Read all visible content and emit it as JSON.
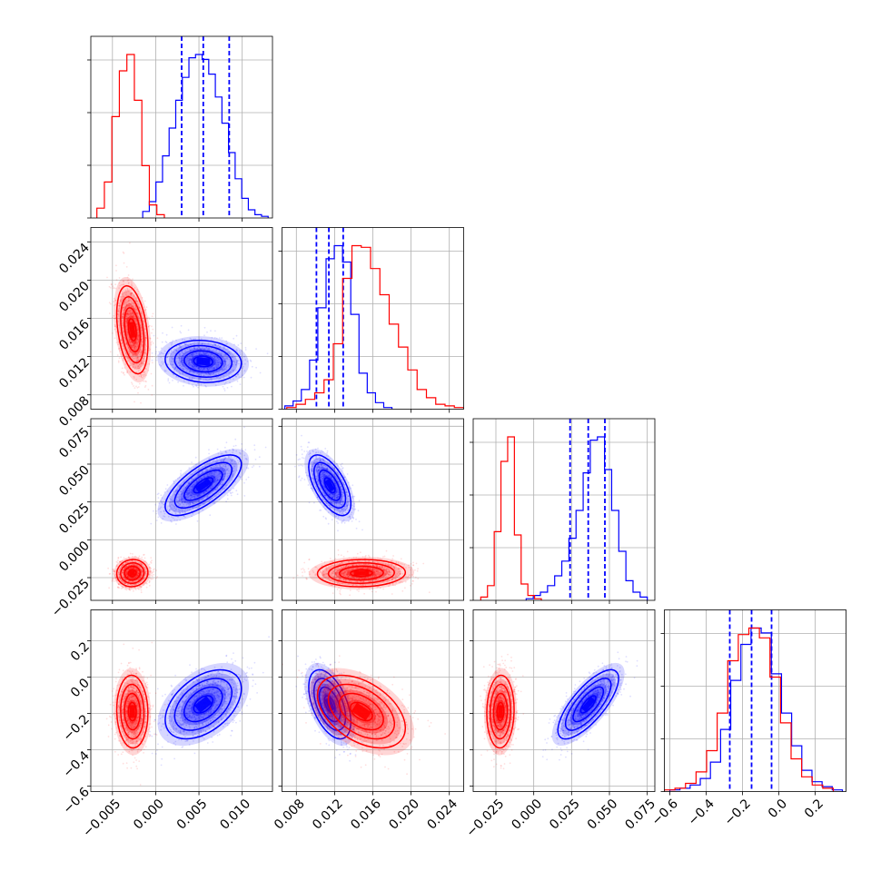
{
  "chart_data": {
    "type": "corner",
    "title": "",
    "grid": true,
    "colors": {
      "series_a": "#0000ff",
      "series_b": "#ff0000"
    },
    "parameters": [
      {
        "index": 0,
        "range": [
          -0.0075,
          0.0135
        ],
        "ticks": [
          -0.005,
          0.0,
          0.005,
          0.01
        ],
        "tick_labels": [
          "−0.005",
          "0.000",
          "0.005",
          "0.010"
        ]
      },
      {
        "index": 1,
        "range": [
          0.0065,
          0.0255
        ],
        "ticks": [
          0.008,
          0.012,
          0.016,
          0.02,
          0.024
        ],
        "tick_labels": [
          "0.008",
          "0.012",
          "0.016",
          "0.020",
          "0.024"
        ]
      },
      {
        "index": 2,
        "range": [
          -0.04,
          0.08
        ],
        "ticks": [
          -0.025,
          0.0,
          0.025,
          0.05,
          0.075
        ],
        "tick_labels": [
          "−0.025",
          "0.000",
          "0.025",
          "0.050",
          "0.075"
        ]
      },
      {
        "index": 3,
        "range": [
          -0.63,
          0.37
        ],
        "ticks": [
          -0.6,
          -0.4,
          -0.2,
          0.0,
          0.2
        ],
        "tick_labels": [
          "−0.6",
          "−0.4",
          "−0.2",
          "0.0",
          "0.2"
        ]
      }
    ],
    "series": [
      {
        "color": "blue",
        "means": [
          0.0055,
          0.0115,
          0.036,
          -0.15
        ],
        "sds": [
          0.0022,
          0.0011,
          0.01,
          0.095
        ],
        "correlations": {
          "1-0": -0.1,
          "2-0": 0.7,
          "2-1": -0.6,
          "3-0": 0.45,
          "3-1": -0.5,
          "3-2": 0.75
        },
        "quantiles": [
          [
            0.003,
            0.0055,
            0.0085
          ],
          [
            0.0101,
            0.0114,
            0.0129
          ],
          [
            0.024,
            0.036,
            0.047
          ],
          [
            -0.27,
            -0.15,
            -0.04
          ]
        ],
        "histograms": [
          {
            "edges_range": [
              -0.0015,
              0.013
            ],
            "counts": [
              0.04,
              0.1,
              0.22,
              0.38,
              0.55,
              0.72,
              0.86,
              0.98,
              1.0,
              0.97,
              0.88,
              0.74,
              0.58,
              0.4,
              0.24,
              0.12,
              0.05,
              0.02,
              0.01
            ]
          },
          {
            "edges_range": [
              0.0068,
              0.018
            ],
            "counts": [
              0.02,
              0.05,
              0.12,
              0.3,
              0.62,
              0.92,
              1.0,
              0.9,
              0.58,
              0.22,
              0.1,
              0.04,
              0.01
            ]
          },
          {
            "edges_range": [
              -0.005,
              0.075
            ],
            "counts": [
              0.01,
              0.03,
              0.05,
              0.09,
              0.15,
              0.24,
              0.38,
              0.55,
              0.78,
              0.98,
              1.0,
              0.8,
              0.55,
              0.3,
              0.12,
              0.05,
              0.02
            ]
          },
          {
            "edges_range": [
              -0.6,
              0.35
            ],
            "counts": [
              0.01,
              0.02,
              0.04,
              0.08,
              0.18,
              0.38,
              0.68,
              0.9,
              1.0,
              0.97,
              0.72,
              0.48,
              0.28,
              0.13,
              0.06,
              0.03,
              0.01
            ]
          }
        ]
      },
      {
        "color": "red",
        "means": [
          -0.0027,
          0.0148,
          -0.022,
          -0.19
        ],
        "sds": [
          0.0009,
          0.0023,
          0.0045,
          0.1
        ],
        "correlations": {
          "1-0": -0.35,
          "2-0": 0.05,
          "2-1": 0.05,
          "3-0": -0.05,
          "3-1": -0.45,
          "3-2": 0.05
        },
        "histograms": [
          {
            "edges_range": [
              -0.0068,
              0.001
            ],
            "counts": [
              0.06,
              0.22,
              0.62,
              0.9,
              1.0,
              0.72,
              0.32,
              0.08,
              0.02
            ]
          },
          {
            "edges_range": [
              0.007,
              0.0255
            ],
            "counts": [
              0.01,
              0.03,
              0.06,
              0.1,
              0.18,
              0.4,
              0.8,
              1.0,
              0.99,
              0.86,
              0.7,
              0.52,
              0.38,
              0.24,
              0.12,
              0.07,
              0.03,
              0.02,
              0.01
            ]
          },
          {
            "edges_range": [
              -0.035,
              0.005
            ],
            "counts": [
              0.02,
              0.09,
              0.42,
              0.85,
              1.0,
              0.4,
              0.1,
              0.03,
              0.01
            ]
          },
          {
            "edges_range": [
              -0.63,
              0.3
            ],
            "counts": [
              0.01,
              0.02,
              0.05,
              0.12,
              0.25,
              0.48,
              0.8,
              0.96,
              1.0,
              0.94,
              0.7,
              0.42,
              0.2,
              0.09,
              0.04,
              0.02
            ]
          }
        ]
      }
    ]
  }
}
